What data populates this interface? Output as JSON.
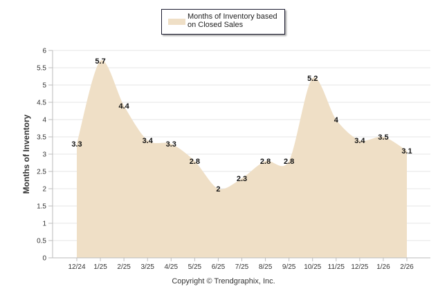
{
  "chart_data": {
    "type": "area",
    "title": "",
    "xlabel": "",
    "ylabel": "Months of Inventory",
    "ylim": [
      0,
      6
    ],
    "yticks": [
      0,
      0.5,
      1,
      1.5,
      2,
      2.5,
      3,
      3.5,
      4,
      4.5,
      5,
      5.5,
      6
    ],
    "ytick_labels": [
      "0",
      "0.5",
      "1",
      "1.5",
      "2",
      "2.5",
      "3",
      "3.5",
      "4",
      "4.5",
      "5",
      "5.5",
      "6"
    ],
    "grid": true,
    "legend_position": "top-center",
    "categories": [
      "12/24",
      "1/25",
      "2/25",
      "3/25",
      "4/25",
      "5/25",
      "6/25",
      "7/25",
      "8/25",
      "9/25",
      "10/25",
      "11/25",
      "12/25",
      "1/26",
      "2/26"
    ],
    "series": [
      {
        "name": "Months of Inventory based on Closed Sales",
        "values": [
          3.3,
          5.7,
          4.4,
          3.4,
          3.3,
          2.8,
          2,
          2.3,
          2.8,
          2.8,
          5.2,
          4,
          3.4,
          3.5,
          3.1
        ],
        "labels": [
          "3.3",
          "5.7",
          "4.4",
          "3.4",
          "3.3",
          "2.8",
          "2",
          "2.3",
          "2.8",
          "2.8",
          "5.2",
          "4",
          "3.4",
          "3.5",
          "3.1"
        ]
      }
    ]
  },
  "legend": {
    "label": "Months of Inventory based on Closed Sales"
  },
  "footer": {
    "copyright": "Copyright © Trendgraphix, Inc."
  },
  "colors": {
    "area_fill": "#efdfc6",
    "grid": "#e6e6e6",
    "axis": "#bbbbbb",
    "text": "#333333",
    "label": "#111111"
  }
}
